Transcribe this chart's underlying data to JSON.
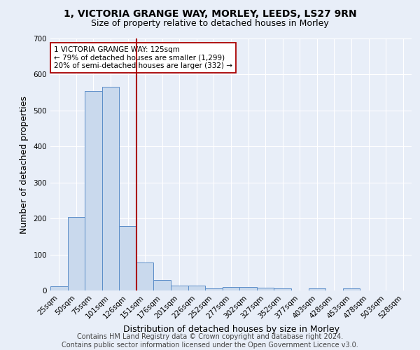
{
  "title1": "1, VICTORIA GRANGE WAY, MORLEY, LEEDS, LS27 9RN",
  "title2": "Size of property relative to detached houses in Morley",
  "xlabel": "Distribution of detached houses by size in Morley",
  "ylabel": "Number of detached properties",
  "categories": [
    "25sqm",
    "50sqm",
    "75sqm",
    "101sqm",
    "126sqm",
    "151sqm",
    "176sqm",
    "201sqm",
    "226sqm",
    "252sqm",
    "277sqm",
    "302sqm",
    "327sqm",
    "352sqm",
    "377sqm",
    "403sqm",
    "428sqm",
    "453sqm",
    "478sqm",
    "503sqm",
    "528sqm"
  ],
  "values": [
    12,
    204,
    554,
    566,
    178,
    78,
    29,
    14,
    13,
    5,
    9,
    9,
    8,
    5,
    0,
    5,
    0,
    6,
    0,
    0,
    0
  ],
  "bar_color": "#c9d9ed",
  "bar_edge_color": "#5b8dc8",
  "background_color": "#e8eef8",
  "grid_color": "#ffffff",
  "vline_color": "#aa0000",
  "annotation_text": "1 VICTORIA GRANGE WAY: 125sqm\n← 79% of detached houses are smaller (1,299)\n20% of semi-detached houses are larger (332) →",
  "annotation_box_color": "#ffffff",
  "annotation_box_edge": "#aa0000",
  "ylim": [
    0,
    700
  ],
  "yticks": [
    0,
    100,
    200,
    300,
    400,
    500,
    600,
    700
  ],
  "footer": "Contains HM Land Registry data © Crown copyright and database right 2024.\nContains public sector information licensed under the Open Government Licence v3.0.",
  "footer_fontsize": 7,
  "title1_fontsize": 10,
  "title2_fontsize": 9,
  "xlabel_fontsize": 9,
  "ylabel_fontsize": 9,
  "tick_fontsize": 7.5,
  "annotation_fontsize": 7.5
}
